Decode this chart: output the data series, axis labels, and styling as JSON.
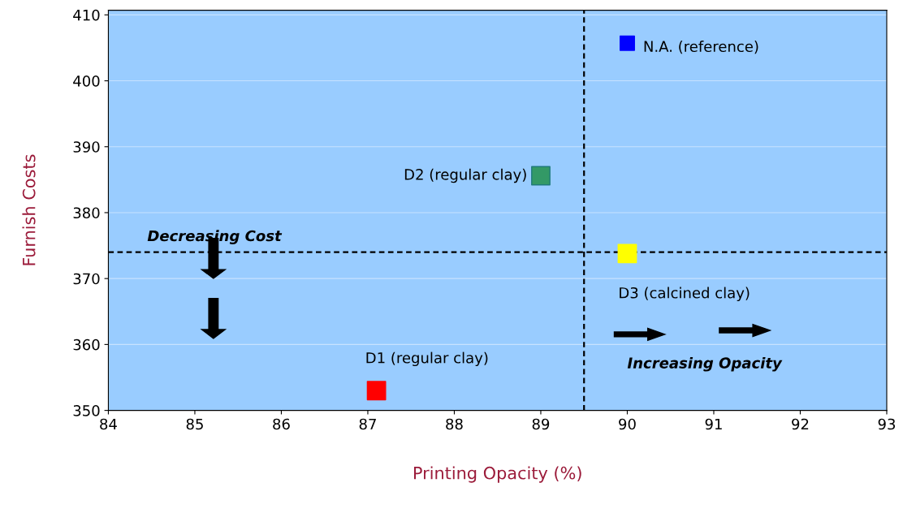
{
  "chart_data": {
    "type": "scatter",
    "xlabel": "Printing Opacity (%)",
    "ylabel": "Furnish Costs",
    "xlim": [
      84,
      93
    ],
    "xticks": [
      84,
      85,
      86,
      87,
      88,
      89,
      90,
      91,
      92,
      93
    ],
    "ylim": [
      350,
      410.7
    ],
    "yticks": [
      350,
      360,
      370,
      380,
      390,
      400,
      410
    ],
    "grid": "y",
    "legend": false,
    "marker": "square",
    "series": [
      {
        "name": "N.A. (reference)",
        "color": "#0000ff",
        "x": [
          90
        ],
        "values": [
          405.7
        ]
      },
      {
        "name": "D2 (regular clay)",
        "color": "#339966",
        "x": [
          89
        ],
        "values": [
          385.6
        ]
      },
      {
        "name": "D3 (calcined clay)",
        "color": "#ffff00",
        "x": [
          90
        ],
        "values": [
          373.8
        ]
      },
      {
        "name": "D1 (regular clay)",
        "color": "#ff0000",
        "x": [
          87.1
        ],
        "values": [
          353
        ]
      }
    ],
    "ref_lines": [
      {
        "axis": "y",
        "value": 374,
        "label": "Decreasing Cost",
        "color": "#000000",
        "line_style": "dashed"
      },
      {
        "axis": "x",
        "value": 89.5,
        "label": "Increasing Opacity",
        "color": "#000000",
        "line_style": "dashed"
      }
    ]
  }
}
